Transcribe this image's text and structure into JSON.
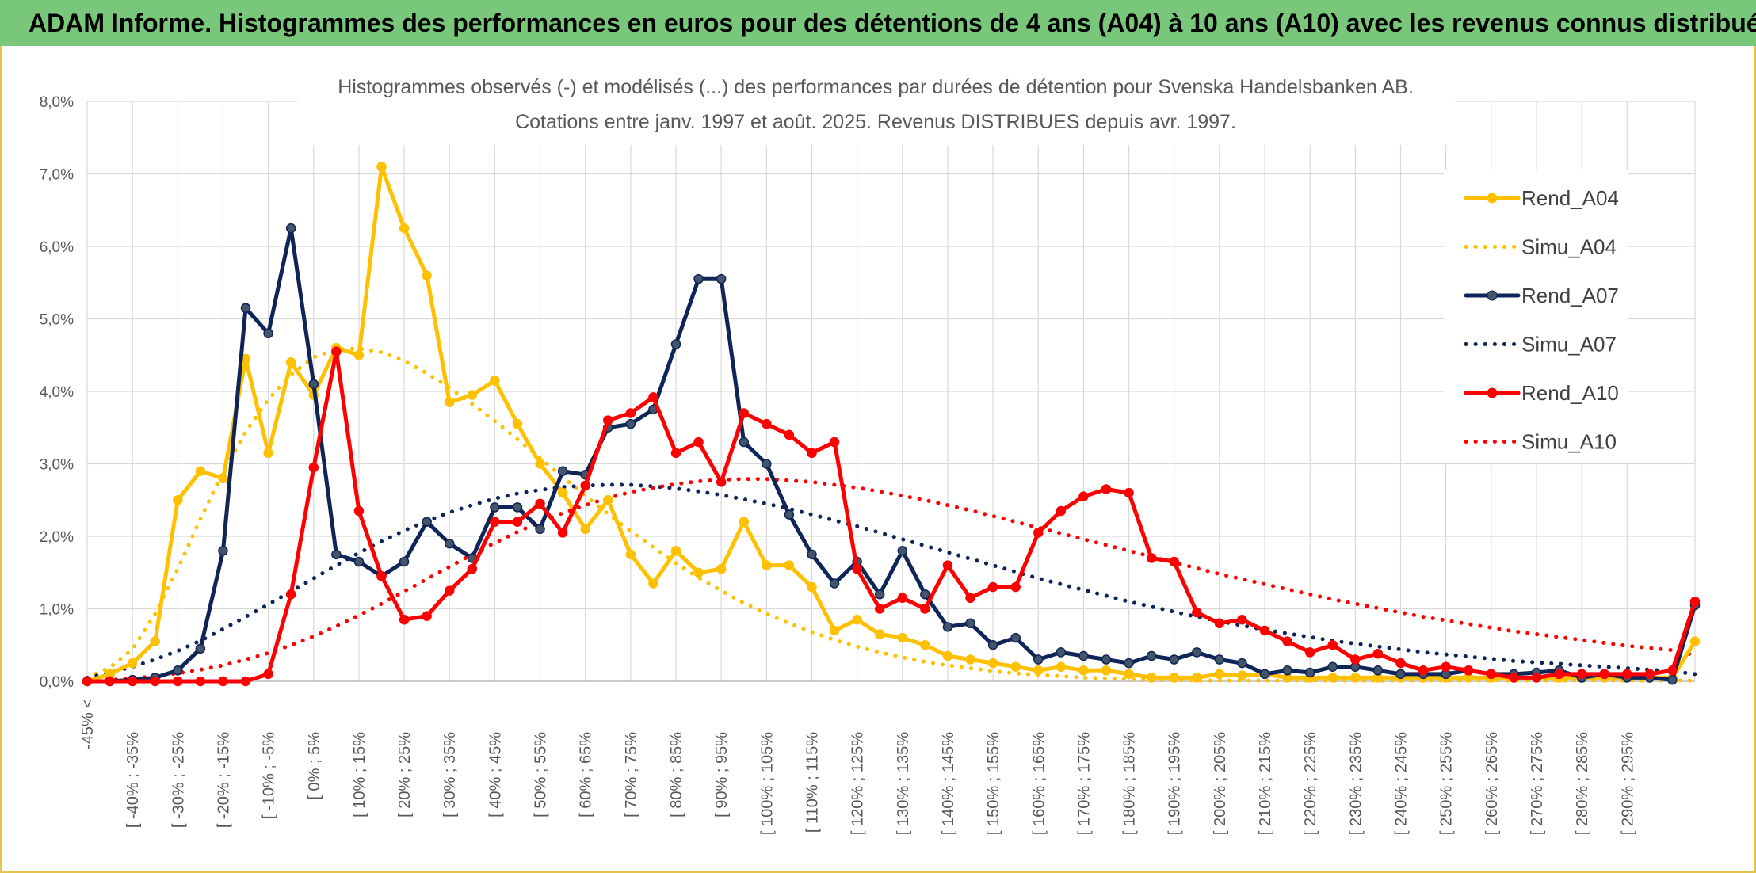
{
  "header": {
    "title": "ADAM Informe. Histogrammes des performances en euros pour des détentions de 4 ans (A04) à 10 ans (A10) avec les revenus connus distribués"
  },
  "colors": {
    "banner": "#79c77a",
    "frame": "#e6c34a",
    "A04": "#ffc000",
    "A07": "#0f2557",
    "A10": "#ff0000",
    "grid": "#d9d9d9",
    "text": "#595959"
  },
  "chart_data": {
    "type": "line",
    "title": "Histogrammes observés (-) et modélisés (...) des performances par durées de détention pour Svenska Handelsbanken AB.",
    "subtitle": "Cotations entre janv. 1997 et août. 2025. Revenus DISTRIBUES depuis avr. 1997.",
    "xlabel": "",
    "ylabel": "",
    "ylim": [
      0,
      8
    ],
    "y_unit": "%",
    "y_ticks": [
      "0,0%",
      "1,0%",
      "2,0%",
      "3,0%",
      "4,0%",
      "5,0%",
      "6,0%",
      "7,0%",
      "8,0%"
    ],
    "grid": true,
    "legend_position": "right",
    "x_tick_labels": [
      "-45% <",
      "[ -40% ; -35%",
      "[ -30% ; -25%",
      "[ -20% ; -15%",
      "[ -10% ; -5%",
      "[ 0% ; 5%",
      "[ 10% ; 15%",
      "[ 20% ; 25%",
      "[ 30% ; 35%",
      "[ 40% ; 45%",
      "[ 50% ; 55%",
      "[ 60% ; 65%",
      "[ 70% ; 75%",
      "[ 80% ; 85%",
      "[ 90% ; 95%",
      "[ 100% ; 105%",
      "[ 110% ; 115%",
      "[ 120% ; 125%",
      "[ 130% ; 135%",
      "[ 140% ; 145%",
      "[ 150% ; 155%",
      "[ 160% ; 165%",
      "[ 170% ; 175%",
      "[ 180% ; 185%",
      "[ 190% ; 195%",
      "[ 200% ; 205%",
      "[ 210% ; 215%",
      "[ 220% ; 225%",
      "[ 230% ; 235%",
      "[ 240% ; 245%",
      "[ 250% ; 255%",
      "[ 260% ; 265%",
      "[ 270% ; 275%",
      "[ 280% ; 285%",
      "[ 290% ; 295%"
    ],
    "series": [
      {
        "name": "Rend_A04",
        "style": "solid",
        "color": "#ffc000",
        "values": [
          0,
          0.1,
          0.25,
          0.55,
          2.5,
          2.9,
          2.8,
          4.45,
          3.15,
          4.4,
          3.95,
          4.6,
          4.5,
          7.1,
          6.25,
          5.6,
          3.85,
          3.95,
          4.15,
          3.55,
          3.0,
          2.6,
          2.1,
          2.5,
          1.75,
          1.35,
          1.8,
          1.5,
          1.55,
          2.2,
          1.6,
          1.6,
          1.3,
          0.7,
          0.85,
          0.65,
          0.6,
          0.5,
          0.35,
          0.3,
          0.25,
          0.2,
          0.15,
          0.2,
          0.15,
          0.15,
          0.1,
          0.05,
          0.05,
          0.05,
          0.1,
          0.08,
          0.1,
          0.05,
          0.05,
          0.05,
          0.05,
          0.05,
          0.05,
          0.05,
          0.05,
          0.05,
          0.05,
          0.05,
          0.05,
          0.05,
          0.05,
          0.05,
          0.05,
          0.05,
          0.05,
          0.55
        ]
      },
      {
        "name": "Simu_A04",
        "style": "dotted",
        "color": "#ffc000",
        "values": [
          0.05,
          0.19,
          0.44,
          0.93,
          1.55,
          2.24,
          2.89,
          3.44,
          3.89,
          4.23,
          4.47,
          4.58,
          4.59,
          4.54,
          4.42,
          4.25,
          4.05,
          3.83,
          3.59,
          3.34,
          3.08,
          2.82,
          2.56,
          2.31,
          2.07,
          1.85,
          1.63,
          1.43,
          1.25,
          1.08,
          0.93,
          0.8,
          0.68,
          0.57,
          0.48,
          0.4,
          0.33,
          0.27,
          0.22,
          0.18,
          0.14,
          0.11,
          0.09,
          0.07,
          0.05,
          0.04,
          0.03,
          0.02,
          0.02,
          0.01,
          0.01,
          0.01,
          0.01,
          0.01,
          0.01,
          0.01,
          0.01,
          0.01,
          0.01,
          0.01,
          0.01,
          0.01,
          0.01,
          0.01,
          0.01,
          0.01,
          0.01,
          0.01,
          0.01,
          0.01,
          0.01,
          0.01
        ]
      },
      {
        "name": "Rend_A07",
        "style": "solid",
        "color": "#0f2557",
        "values": [
          0,
          0,
          0.02,
          0.05,
          0.15,
          0.45,
          1.8,
          5.15,
          4.8,
          6.25,
          4.1,
          1.75,
          1.65,
          1.45,
          1.65,
          2.2,
          1.9,
          1.7,
          2.4,
          2.4,
          2.1,
          2.9,
          2.85,
          3.5,
          3.55,
          3.75,
          4.65,
          5.55,
          5.55,
          3.3,
          3.0,
          2.3,
          1.75,
          1.35,
          1.65,
          1.2,
          1.8,
          1.2,
          0.75,
          0.8,
          0.5,
          0.6,
          0.3,
          0.4,
          0.35,
          0.3,
          0.25,
          0.35,
          0.3,
          0.4,
          0.3,
          0.25,
          0.1,
          0.15,
          0.12,
          0.2,
          0.2,
          0.15,
          0.1,
          0.1,
          0.1,
          0.15,
          0.1,
          0.1,
          0.12,
          0.15,
          0.05,
          0.1,
          0.05,
          0.05,
          0.02,
          1.05
        ]
      },
      {
        "name": "Simu_A07",
        "style": "dotted",
        "color": "#0f2557",
        "values": [
          0.05,
          0.12,
          0.2,
          0.3,
          0.42,
          0.56,
          0.72,
          0.89,
          1.06,
          1.24,
          1.42,
          1.6,
          1.77,
          1.93,
          2.08,
          2.21,
          2.33,
          2.43,
          2.52,
          2.59,
          2.64,
          2.68,
          2.7,
          2.71,
          2.71,
          2.69,
          2.66,
          2.62,
          2.57,
          2.51,
          2.45,
          2.38,
          2.3,
          2.22,
          2.14,
          2.05,
          1.96,
          1.87,
          1.78,
          1.69,
          1.6,
          1.51,
          1.42,
          1.34,
          1.26,
          1.18,
          1.1,
          1.03,
          0.96,
          0.89,
          0.83,
          0.77,
          0.71,
          0.66,
          0.61,
          0.56,
          0.52,
          0.48,
          0.44,
          0.4,
          0.37,
          0.34,
          0.31,
          0.28,
          0.26,
          0.24,
          0.22,
          0.2,
          0.18,
          0.16,
          0.14,
          0.1
        ]
      },
      {
        "name": "Rend_A10",
        "style": "solid",
        "color": "#ff0000",
        "values": [
          0,
          0,
          0,
          0,
          0,
          0,
          0,
          0,
          0.1,
          1.2,
          2.95,
          4.55,
          2.35,
          1.45,
          0.85,
          0.9,
          1.25,
          1.55,
          2.2,
          2.2,
          2.45,
          2.05,
          2.7,
          3.6,
          3.7,
          3.92,
          3.15,
          3.3,
          2.75,
          3.7,
          3.55,
          3.4,
          3.15,
          3.3,
          1.55,
          1.0,
          1.15,
          1.0,
          1.6,
          1.15,
          1.3,
          1.3,
          2.05,
          2.35,
          2.55,
          2.65,
          2.6,
          1.7,
          1.65,
          0.95,
          0.8,
          0.85,
          0.7,
          0.55,
          0.4,
          0.5,
          0.3,
          0.38,
          0.25,
          0.15,
          0.2,
          0.15,
          0.1,
          0.05,
          0.05,
          0.1,
          0.1,
          0.1,
          0.1,
          0.1,
          0.15,
          1.1
        ]
      },
      {
        "name": "Simu_A10",
        "style": "dotted",
        "color": "#ff0000",
        "values": [
          0.01,
          0.02,
          0.04,
          0.07,
          0.11,
          0.16,
          0.22,
          0.3,
          0.39,
          0.5,
          0.62,
          0.76,
          0.91,
          1.07,
          1.24,
          1.41,
          1.58,
          1.75,
          1.91,
          2.06,
          2.2,
          2.32,
          2.43,
          2.53,
          2.61,
          2.67,
          2.72,
          2.76,
          2.78,
          2.79,
          2.79,
          2.77,
          2.75,
          2.71,
          2.67,
          2.62,
          2.56,
          2.5,
          2.43,
          2.36,
          2.28,
          2.2,
          2.12,
          2.04,
          1.96,
          1.88,
          1.8,
          1.72,
          1.64,
          1.56,
          1.48,
          1.41,
          1.34,
          1.27,
          1.2,
          1.13,
          1.07,
          1.01,
          0.95,
          0.89,
          0.84,
          0.79,
          0.74,
          0.69,
          0.65,
          0.61,
          0.57,
          0.53,
          0.49,
          0.46,
          0.43,
          0.36
        ]
      }
    ]
  }
}
